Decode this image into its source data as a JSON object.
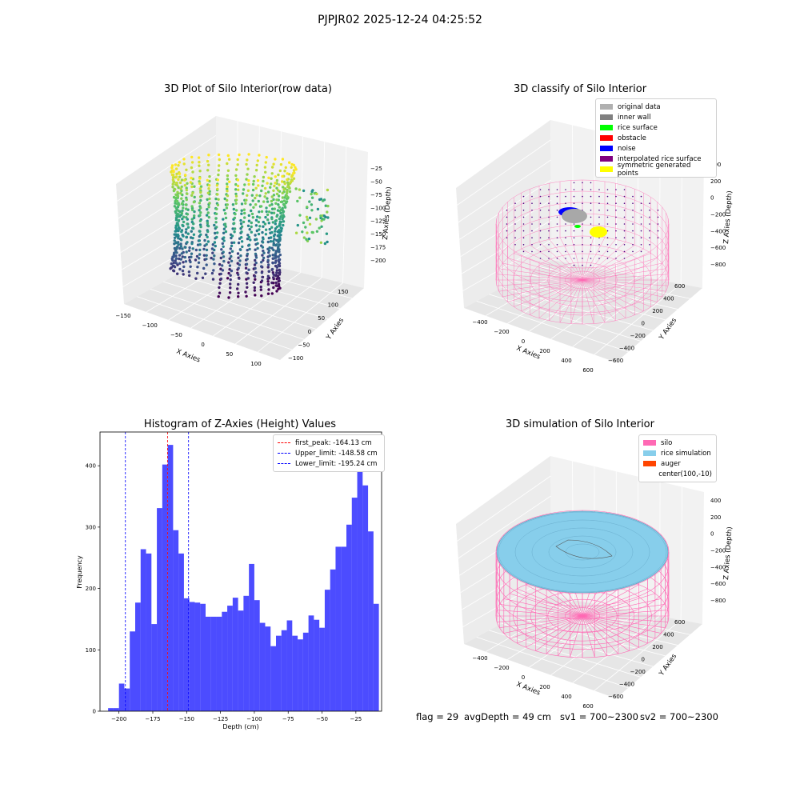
{
  "suptitle": "PJPJR02 2025-12-24 04:25:52",
  "panels": {
    "raw": {
      "title": "3D Plot of Silo Interior(row data)",
      "xlabel": "X Axies",
      "ylabel": "Y Axies",
      "zlabel": "Z Axies (Depth)",
      "xticks": [
        "−150",
        "−100",
        "−50",
        "0",
        "50",
        "100"
      ],
      "yticks": [
        "150",
        "100",
        "50",
        "0",
        "−50",
        "−100"
      ],
      "zticks": [
        "−25",
        "−50",
        "−75",
        "−100",
        "−125",
        "−150",
        "−175",
        "−200"
      ]
    },
    "classify": {
      "title": "3D classify of Silo Interior",
      "xlabel": "X Axies",
      "ylabel": "Y Axies",
      "zlabel": "Z Axies (Depth)",
      "xticks": [
        "−400",
        "−200",
        "0",
        "200",
        "400",
        "600"
      ],
      "yticks": [
        "600",
        "400",
        "200",
        "0",
        "−200",
        "−400",
        "−600"
      ],
      "zticks": [
        "400",
        "200",
        "0",
        "−200",
        "−400",
        "−600",
        "−800"
      ],
      "legend": [
        {
          "label": "original data",
          "color": "#b0b0b0"
        },
        {
          "label": "inner wall",
          "color": "#808080"
        },
        {
          "label": "rice surface",
          "color": "#00ff00"
        },
        {
          "label": "obstacle",
          "color": "#ff0000"
        },
        {
          "label": "noise",
          "color": "#0000ff"
        },
        {
          "label": "interpolated rice surface",
          "color": "#800080"
        },
        {
          "label": "symmetric generated points",
          "color": "#ffff00"
        }
      ]
    },
    "simulation": {
      "title": "3D simulation of Silo Interior",
      "xlabel": "X Axies",
      "ylabel": "Y Axies",
      "zlabel": "Z Axies (Depth)",
      "xticks": [
        "−400",
        "−200",
        "0",
        "200",
        "400",
        "600"
      ],
      "yticks": [
        "600",
        "400",
        "200",
        "0",
        "−200",
        "−400",
        "−600"
      ],
      "zticks": [
        "400",
        "200",
        "0",
        "−200",
        "−400",
        "−600",
        "−800"
      ],
      "legend": [
        {
          "label": "silo",
          "color": "#ff69b4"
        },
        {
          "label": "rice simulation",
          "color": "#87ceeb"
        },
        {
          "label": "auger",
          "color": "#ff4500"
        },
        {
          "label": "center(100,-10)",
          "color": ""
        }
      ]
    }
  },
  "chart_data": {
    "type": "bar",
    "title": "Histogram of Z-Axies (Height) Values",
    "xlabel": "Depth (cm)",
    "ylabel": "Frequency",
    "xlim": [
      -214,
      -6
    ],
    "ylim": [
      0,
      455
    ],
    "xticks": [
      -200,
      -175,
      -150,
      -125,
      -100,
      -75,
      -50,
      -25
    ],
    "yticks": [
      0,
      100,
      200,
      300,
      400
    ],
    "bin_start": -208,
    "bin_width": 4,
    "values": [
      5,
      5,
      45,
      37,
      130,
      177,
      264,
      257,
      142,
      331,
      402,
      434,
      295,
      257,
      184,
      178,
      177,
      175,
      154,
      154,
      154,
      162,
      172,
      185,
      164,
      188,
      240,
      181,
      144,
      138,
      106,
      123,
      132,
      148,
      123,
      117,
      128,
      156,
      149,
      136,
      198,
      231,
      268,
      268,
      304,
      348,
      396,
      368,
      293,
      175
    ],
    "bar_color": "#0000ff",
    "vlines": [
      {
        "label": "first_peak: -164.13 cm",
        "x": -164.13,
        "color": "#ff0000"
      },
      {
        "label": "Upper_limit: -148.58 cm",
        "x": -148.58,
        "color": "#0000ff"
      },
      {
        "label": "Lower_limit: -195.24 cm",
        "x": -195.24,
        "color": "#0000ff"
      }
    ],
    "legend_position": "top-right"
  },
  "footer": {
    "flag": "flag = 29",
    "avg": "avgDepth = 49 cm",
    "sv1": "sv1 = 700~2300",
    "sv2": "sv2 = 700~2300"
  }
}
